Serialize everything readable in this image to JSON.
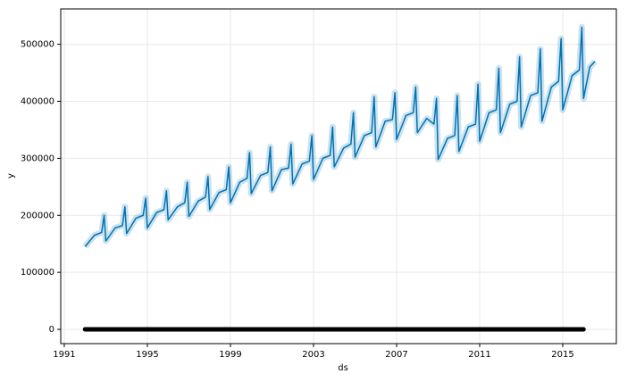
{
  "chart_data": {
    "type": "line",
    "xlabel": "ds",
    "ylabel": "y",
    "xlim": [
      1990.83,
      2017.58
    ],
    "ylim": [
      -25000,
      562000
    ],
    "xticks": [
      1991,
      1995,
      1999,
      2003,
      2007,
      2011,
      2015
    ],
    "yticks": [
      0,
      100000,
      200000,
      300000,
      400000,
      500000
    ],
    "grid": true,
    "series": [
      {
        "color": "#0072B2",
        "style": "line",
        "x": [
          1992.0,
          1992.45,
          1992.8,
          1992.92,
          1993.0,
          1993.45,
          1993.8,
          1993.92,
          1994.0,
          1994.45,
          1994.8,
          1994.92,
          1995.0,
          1995.45,
          1995.8,
          1995.92,
          1996.0,
          1996.45,
          1996.8,
          1996.92,
          1997.0,
          1997.45,
          1997.8,
          1997.92,
          1998.0,
          1998.45,
          1998.8,
          1998.92,
          1999.0,
          1999.45,
          1999.8,
          1999.92,
          2000.0,
          2000.45,
          2000.8,
          2000.92,
          2001.0,
          2001.45,
          2001.8,
          2001.92,
          2002.0,
          2002.45,
          2002.8,
          2002.92,
          2003.0,
          2003.45,
          2003.8,
          2003.92,
          2004.0,
          2004.45,
          2004.8,
          2004.92,
          2005.0,
          2005.45,
          2005.8,
          2005.92,
          2006.0,
          2006.45,
          2006.8,
          2006.92,
          2007.0,
          2007.45,
          2007.8,
          2007.92,
          2008.0,
          2008.45,
          2008.8,
          2008.92,
          2009.0,
          2009.45,
          2009.8,
          2009.92,
          2010.0,
          2010.45,
          2010.8,
          2010.92,
          2011.0,
          2011.45,
          2011.8,
          2011.92,
          2012.0,
          2012.45,
          2012.8,
          2012.92,
          2013.0,
          2013.45,
          2013.8,
          2013.92,
          2014.0,
          2014.45,
          2014.8,
          2014.92,
          2015.0,
          2015.45,
          2015.8,
          2015.92,
          2016.0,
          2016.3,
          2016.55
        ],
        "values": [
          145000,
          165000,
          170000,
          200000,
          155000,
          178000,
          182000,
          215000,
          168000,
          195000,
          200000,
          230000,
          178000,
          205000,
          210000,
          243000,
          192000,
          215000,
          222000,
          258000,
          198000,
          225000,
          232000,
          268000,
          210000,
          240000,
          245000,
          285000,
          222000,
          258000,
          265000,
          310000,
          238000,
          270000,
          275000,
          320000,
          243000,
          280000,
          283000,
          325000,
          255000,
          290000,
          295000,
          340000,
          263000,
          300000,
          305000,
          355000,
          285000,
          318000,
          325000,
          380000,
          302000,
          340000,
          345000,
          408000,
          320000,
          365000,
          368000,
          415000,
          333000,
          375000,
          380000,
          425000,
          345000,
          370000,
          360000,
          405000,
          298000,
          335000,
          340000,
          410000,
          312000,
          355000,
          360000,
          430000,
          330000,
          380000,
          385000,
          458000,
          345000,
          395000,
          400000,
          478000,
          355000,
          410000,
          415000,
          492000,
          365000,
          425000,
          435000,
          510000,
          385000,
          445000,
          455000,
          530000,
          405000,
          460000,
          470000
        ]
      },
      {
        "color": "#000000",
        "style": "points",
        "x": [
          1992.0,
          1992.5,
          1993.0,
          1993.5,
          1994.0,
          1994.5,
          1995.0,
          1995.5,
          1996.0,
          1996.5,
          1997.0,
          1997.5,
          1998.0,
          1998.5,
          1999.0,
          1999.5,
          2000.0,
          2000.5,
          2001.0,
          2001.5,
          2002.0,
          2002.5,
          2003.0,
          2003.5,
          2004.0,
          2004.5,
          2005.0,
          2005.5,
          2006.0,
          2006.5,
          2007.0,
          2007.5,
          2008.0,
          2008.5,
          2009.0,
          2009.5,
          2010.0,
          2010.5,
          2011.0,
          2011.5,
          2012.0,
          2012.5,
          2013.0,
          2013.5,
          2014.0,
          2014.5,
          2015.0,
          2015.5,
          2016.0
        ],
        "values": [
          0,
          0,
          0,
          0,
          0,
          0,
          0,
          0,
          0,
          0,
          0,
          0,
          0,
          0,
          0,
          0,
          0,
          0,
          0,
          0,
          0,
          0,
          0,
          0,
          0,
          0,
          0,
          0,
          0,
          0,
          0,
          0,
          0,
          0,
          0,
          0,
          0,
          0,
          0,
          0,
          0,
          0,
          0,
          0,
          0,
          0,
          0,
          0,
          0
        ]
      }
    ]
  }
}
